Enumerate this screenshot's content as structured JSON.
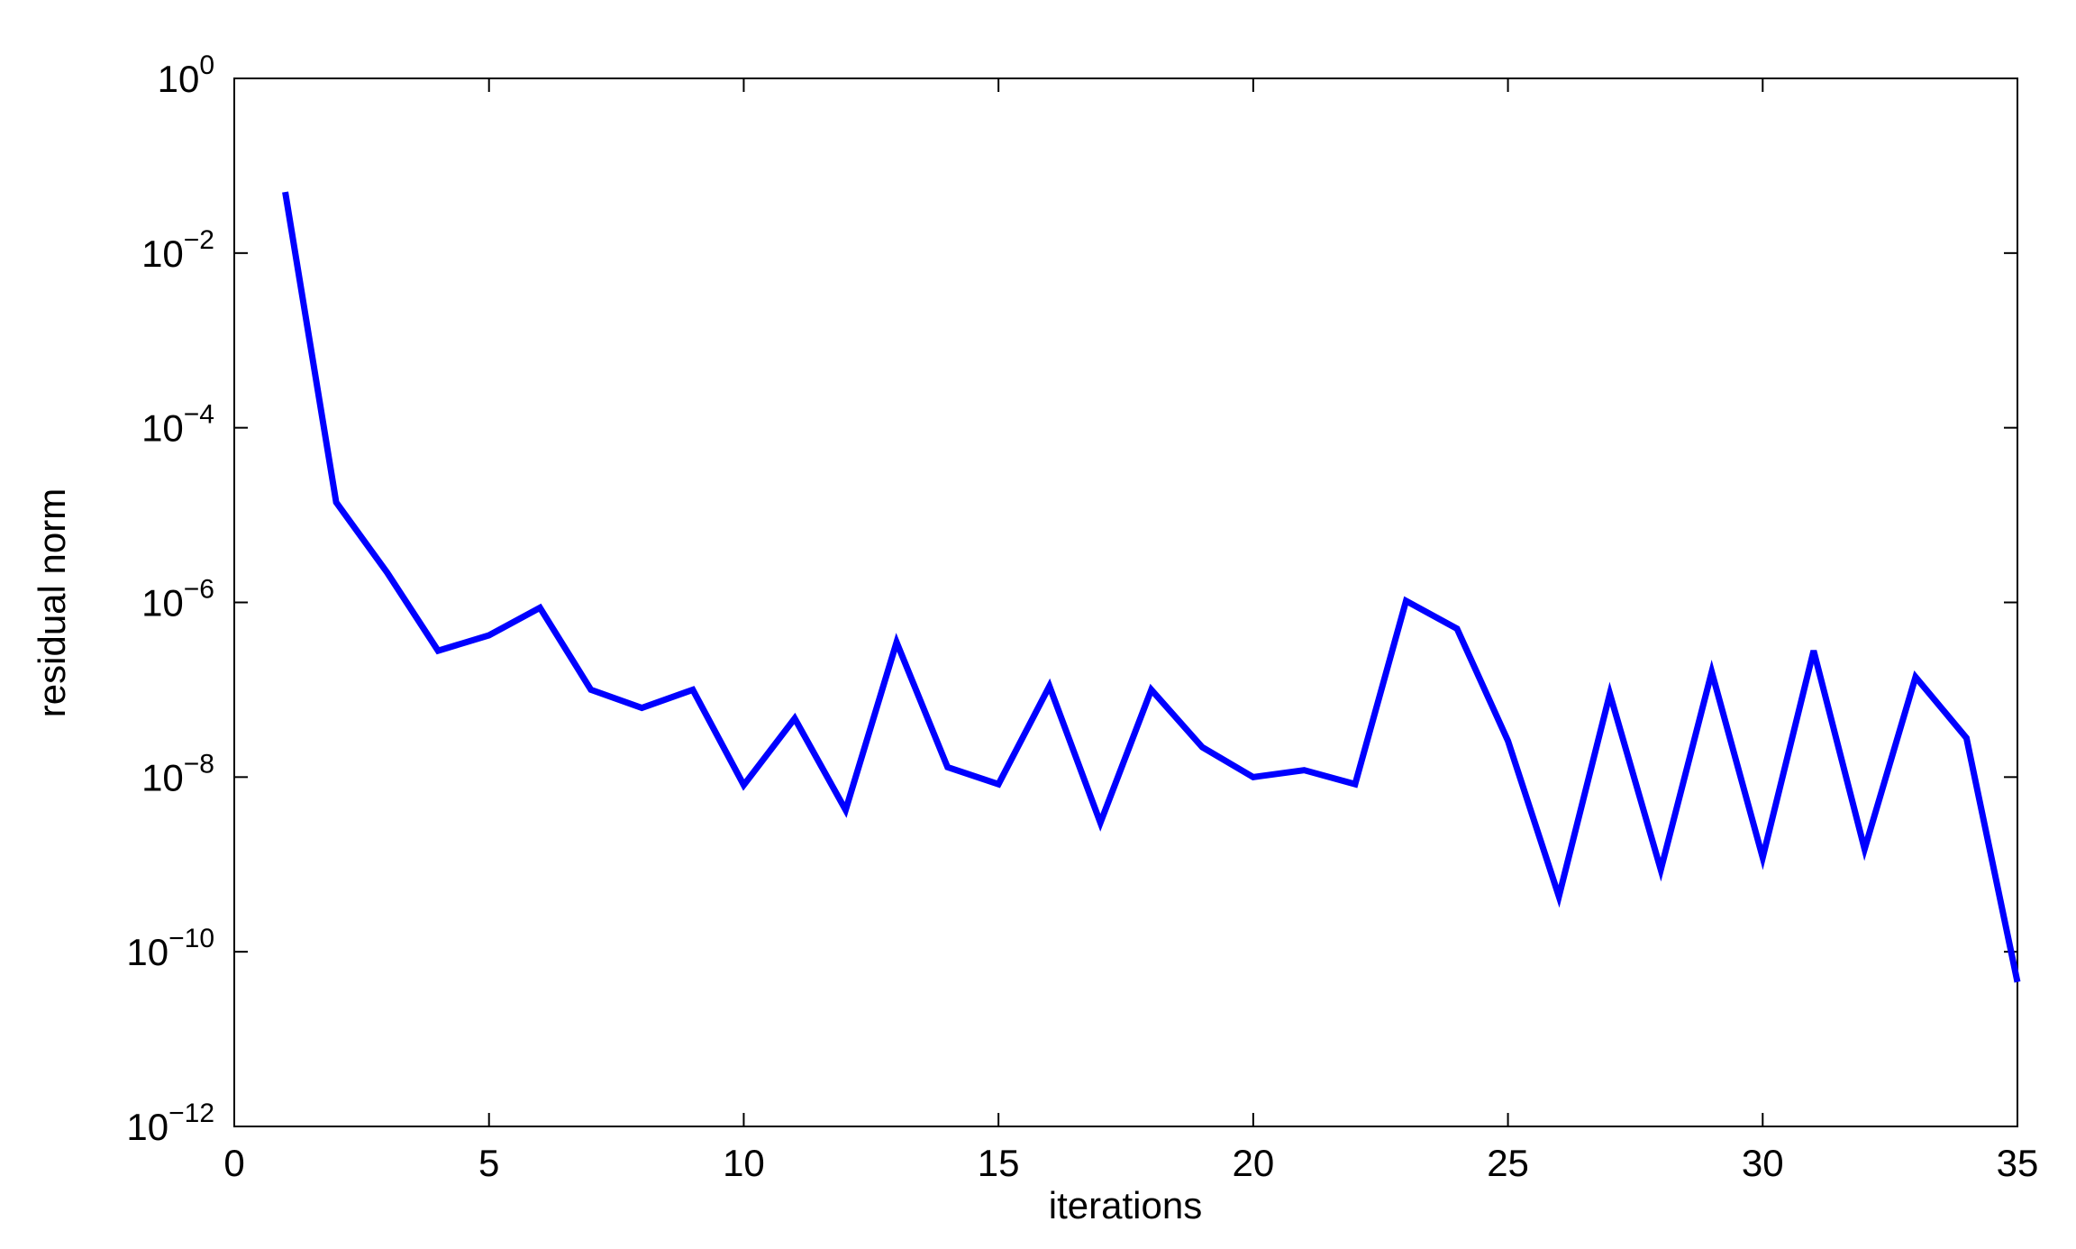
{
  "chart_data": {
    "type": "line",
    "x_label": "iterations",
    "y_label": "residual norm",
    "x": [
      1,
      2,
      3,
      4,
      5,
      6,
      7,
      8,
      9,
      10,
      11,
      12,
      13,
      14,
      15,
      16,
      17,
      18,
      19,
      20,
      21,
      22,
      23,
      24,
      25,
      26,
      27,
      28,
      29,
      30,
      31,
      32,
      33,
      34,
      35
    ],
    "series": [
      {
        "name": "residual norm",
        "color": "#0000ff",
        "values": [
          0.05,
          1.4e-05,
          2.2e-06,
          2.8e-07,
          4.2e-07,
          8.7e-07,
          1e-07,
          6.2e-08,
          1e-07,
          8.1e-09,
          4.7e-08,
          4.2e-09,
          3.5e-07,
          1.3e-08,
          8.3e-09,
          1.1e-07,
          3e-09,
          1e-07,
          2.2e-08,
          1e-08,
          1.2e-08,
          8.3e-09,
          1.04e-06,
          5e-07,
          2.6e-08,
          4.3e-10,
          9e-08,
          8.7e-10,
          1.6e-07,
          1.2e-09,
          2.8e-07,
          1.5e-09,
          1.4e-07,
          2.8e-08,
          4.5e-11
        ]
      }
    ],
    "xlim": [
      0,
      35
    ],
    "xticks": [
      0,
      5,
      10,
      15,
      20,
      25,
      30,
      35
    ],
    "ylim": [
      1e-12,
      1
    ],
    "log_y": true,
    "yticks": [
      {
        "value": 1,
        "label": "10⁺0"
      },
      {
        "value": 0.01,
        "label": "10−2"
      },
      {
        "value": 0.0001,
        "label": "10−4"
      },
      {
        "value": 1e-06,
        "label": "10−6"
      },
      {
        "value": 1e-08,
        "label": "10−8"
      },
      {
        "value": 1e-10,
        "label": "10−10"
      },
      {
        "value": 1e-12,
        "label": "10−12"
      }
    ],
    "grid": false
  }
}
